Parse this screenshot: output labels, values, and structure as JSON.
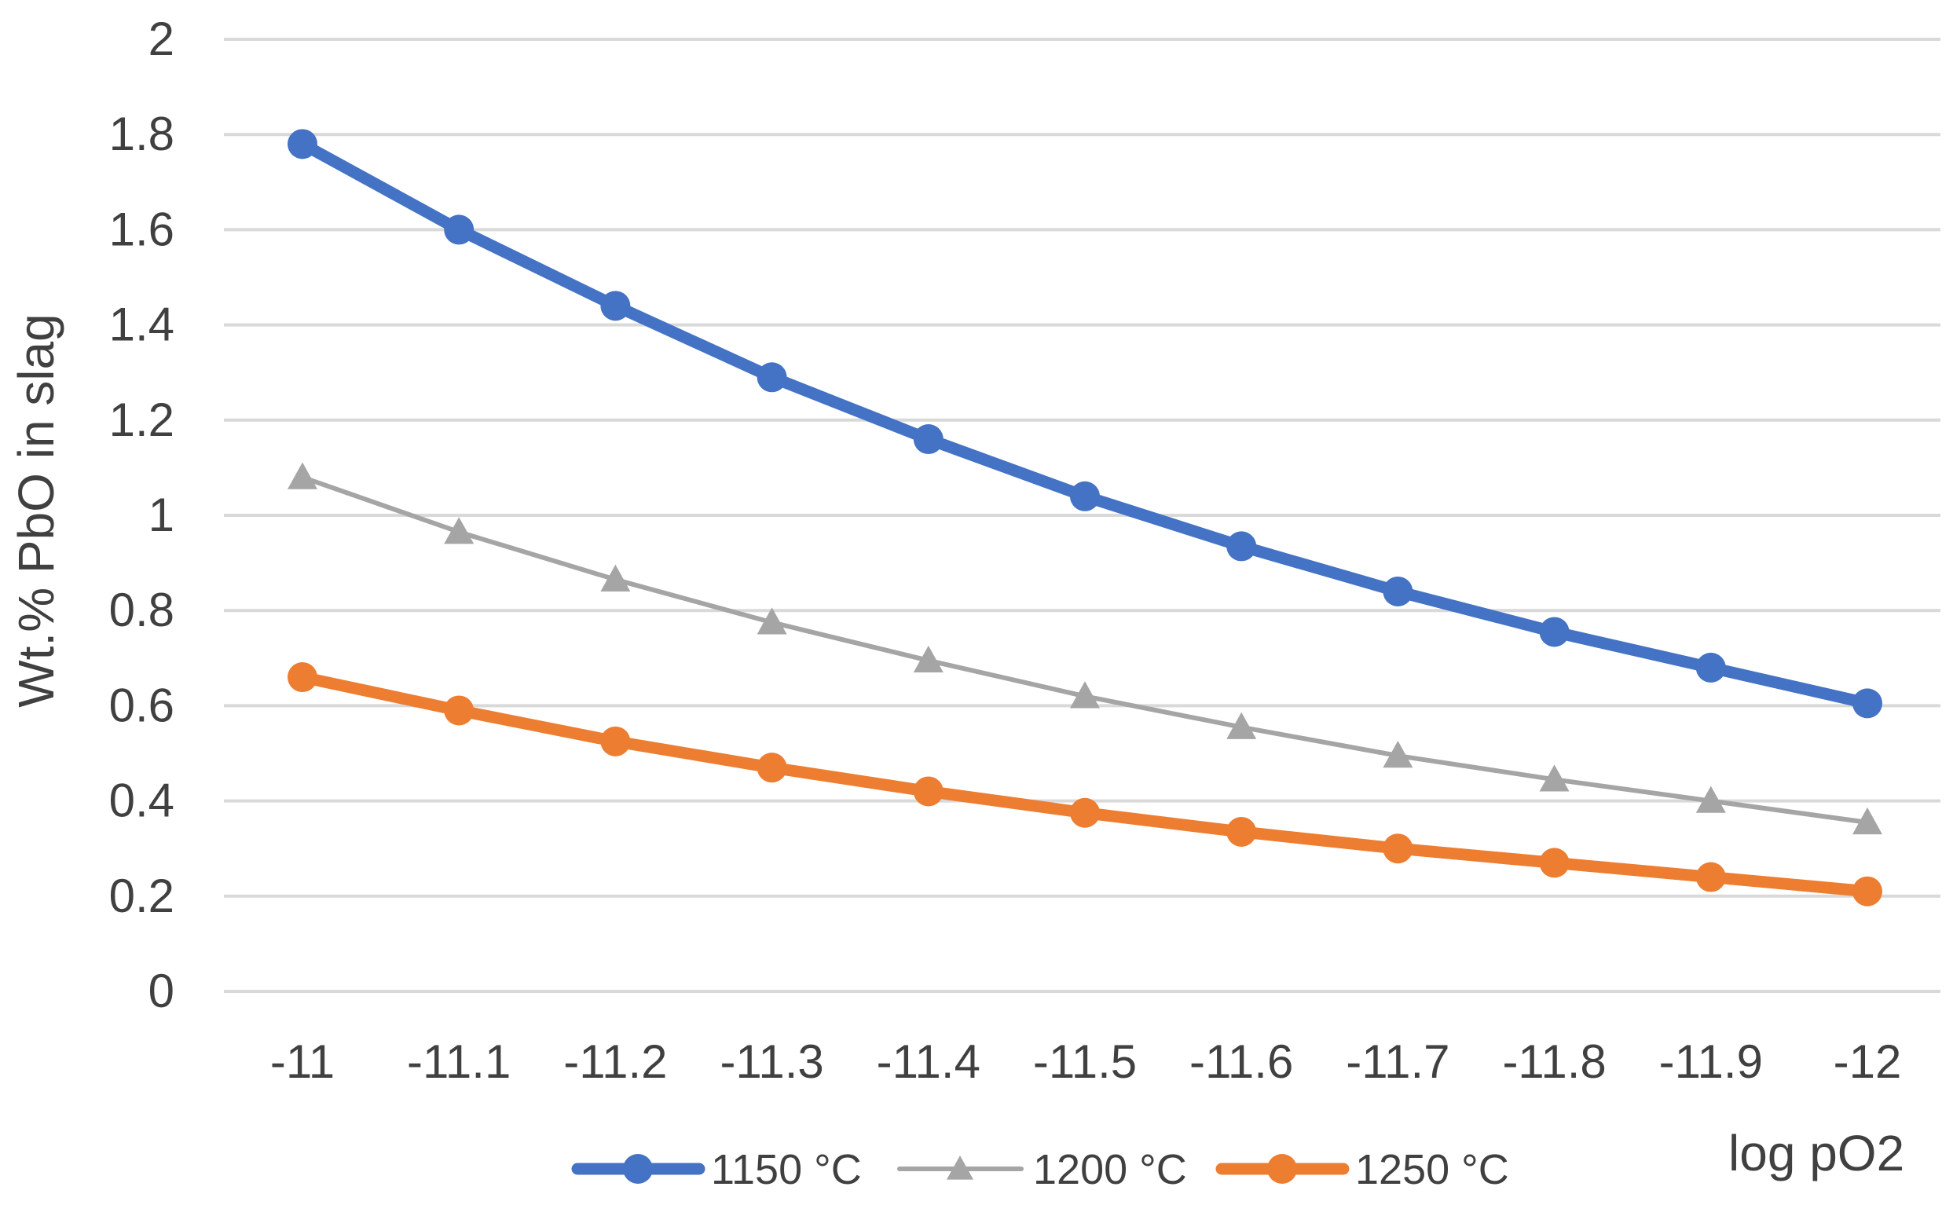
{
  "chart_data": {
    "type": "line",
    "title": "",
    "xlabel": "log pO2",
    "ylabel": "Wt.% PbO in slag",
    "categories": [
      "-11",
      "-11.1",
      "-11.2",
      "-11.3",
      "-11.4",
      "-11.5",
      "-11.6",
      "-11.7",
      "-11.8",
      "-11.9",
      "-12"
    ],
    "ylim": [
      0,
      2
    ],
    "yticks": [
      "0",
      "0.2",
      "0.4",
      "0.6",
      "0.8",
      "1",
      "1.2",
      "1.4",
      "1.6",
      "1.8",
      "2"
    ],
    "grid": true,
    "legend_position": "bottom",
    "series": [
      {
        "name": "1150 °C",
        "color": "#4472C4",
        "marker": "circle",
        "values": [
          1.78,
          1.6,
          1.44,
          1.29,
          1.16,
          1.04,
          0.935,
          0.84,
          0.755,
          0.68,
          0.605
        ]
      },
      {
        "name": "1200 °C",
        "color": "#A5A5A5",
        "marker": "triangle",
        "values": [
          1.08,
          0.965,
          0.865,
          0.775,
          0.695,
          0.62,
          0.555,
          0.495,
          0.445,
          0.4,
          0.355
        ]
      },
      {
        "name": "1250 °C",
        "color": "#ED7D31",
        "marker": "circle",
        "values": [
          0.66,
          0.59,
          0.525,
          0.47,
          0.42,
          0.375,
          0.335,
          0.3,
          0.27,
          0.24,
          0.21
        ]
      }
    ]
  }
}
